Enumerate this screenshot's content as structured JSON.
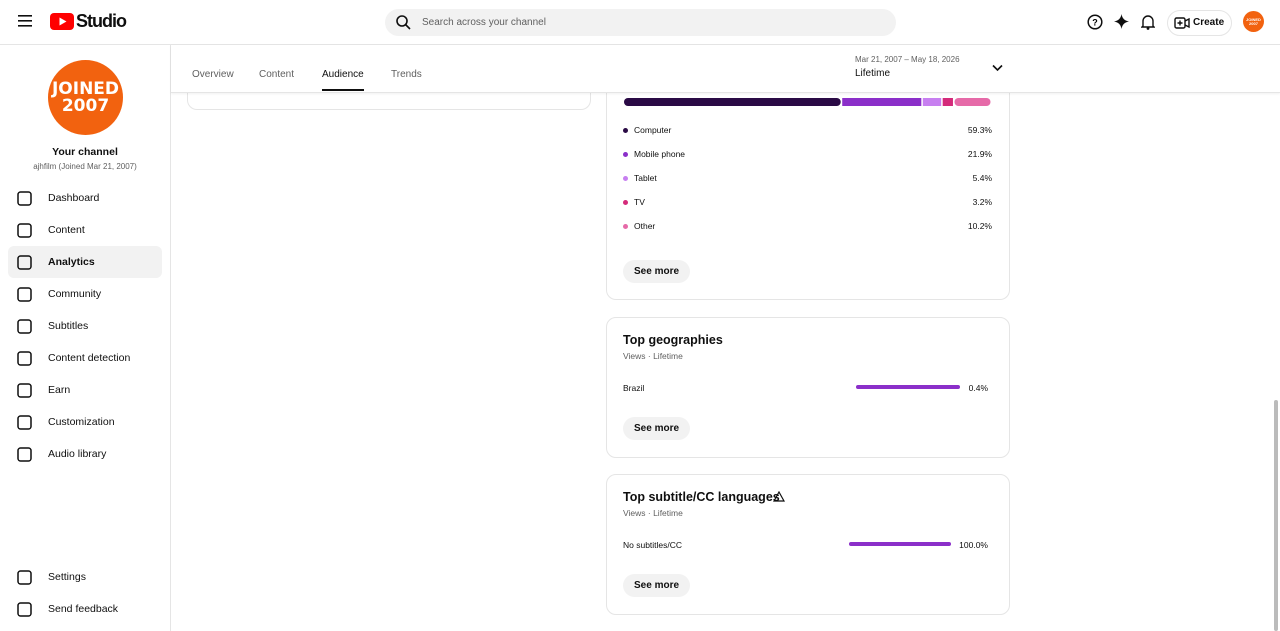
{
  "header": {
    "logo_text": "Studio",
    "search_placeholder": "Search across your channel",
    "create_label": "Create",
    "avatar_lines": [
      "JOINED",
      "2007"
    ]
  },
  "sidebar": {
    "avatar_lines": [
      "JOINED",
      "2007"
    ],
    "channel_title": "Your channel",
    "channel_subtitle": "ajhfilm (Joined Mar 21, 2007)",
    "items": [
      "Dashboard",
      "Content",
      "Analytics",
      "Community",
      "Subtitles",
      "Content detection",
      "Earn",
      "Customization",
      "Audio library"
    ],
    "active": 2,
    "footer_items": [
      "Settings",
      "Send feedback"
    ]
  },
  "tabs": {
    "items": [
      "Overview",
      "Content",
      "Audience",
      "Trends"
    ],
    "active": 2
  },
  "date_range": {
    "range": "Mar 21, 2007 – May 18, 2026",
    "label": "Lifetime"
  },
  "device_type": {
    "categories": [
      "Computer",
      "Mobile phone",
      "Tablet",
      "TV",
      "Other"
    ],
    "values": [
      59.3,
      21.9,
      5.4,
      3.2,
      10.2
    ],
    "value_labels": [
      "59.3%",
      "21.9%",
      "5.4%",
      "3.2%",
      "10.2%"
    ],
    "colors": [
      "#2a0a45",
      "#8b2fc9",
      "#c77ff0",
      "#d42a7a",
      "#e66aa8"
    ],
    "button": "See more"
  },
  "geographies": {
    "title": "Top geographies",
    "subtitle": "Views · Lifetime",
    "categories": [
      "Brazil"
    ],
    "values": [
      0.4
    ],
    "value_labels": [
      "0.4%"
    ],
    "color": "#8b2fc9",
    "button": "See more"
  },
  "subtitle_languages": {
    "title": "Top subtitle/CC languages",
    "subtitle": "Views · Lifetime",
    "categories": [
      "No subtitles/CC"
    ],
    "values": [
      100
    ],
    "value_labels": [
      "100.0%"
    ],
    "color": "#8b2fc9",
    "button": "See more"
  }
}
